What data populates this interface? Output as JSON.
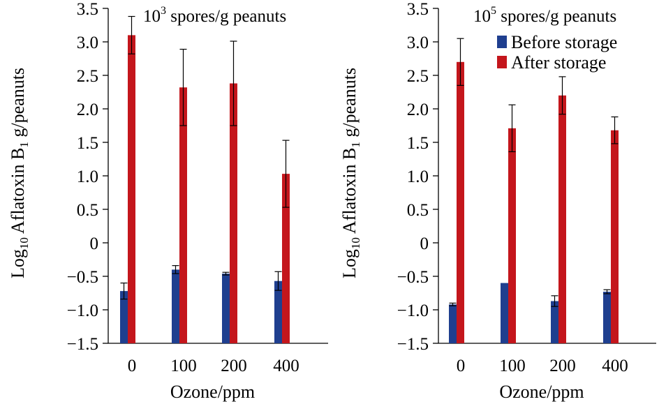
{
  "chart_data": [
    {
      "type": "bar",
      "title_base": "10",
      "title_sup": "3",
      "title_rest": " spores/g peanuts",
      "xlabel": "Ozone/ppm",
      "ylabel_base": "Log",
      "ylabel_sub1": "10",
      "ylabel_mid": " Aflatoxin B",
      "ylabel_sub2": "1",
      "ylabel_end": " g/peanuts",
      "ylim": [
        -1.5,
        3.5
      ],
      "yticks": [
        "-1.5",
        "-1.0",
        "-0.5",
        "0",
        "0.5",
        "1.0",
        "1.5",
        "2.0",
        "2.5",
        "3.0",
        "3.5"
      ],
      "categories": [
        "0",
        "100",
        "200",
        "400"
      ],
      "series": [
        {
          "name": "Before storage",
          "color": "#1f3f8f",
          "values": [
            -0.72,
            -0.4,
            -0.46,
            -0.57
          ],
          "errors": [
            0.12,
            0.06,
            0.02,
            0.14
          ]
        },
        {
          "name": "After storage",
          "color": "#c4161c",
          "values": [
            3.1,
            2.32,
            2.38,
            1.03
          ],
          "errors": [
            0.28,
            0.57,
            0.63,
            0.5
          ]
        }
      ],
      "legend": false
    },
    {
      "type": "bar",
      "title_base": "10",
      "title_sup": "5",
      "title_rest": " spores/g peanuts",
      "xlabel": "Ozone/ppm",
      "ylabel_base": "Log",
      "ylabel_sub1": "10",
      "ylabel_mid": " Aflatoxin B",
      "ylabel_sub2": "1",
      "ylabel_end": " g/peanuts",
      "ylim": [
        -1.5,
        3.5
      ],
      "yticks": [
        "-1.5",
        "-1.0",
        "-0.5",
        "0",
        "0.5",
        "1.0",
        "1.5",
        "2.0",
        "2.5",
        "3.0",
        "3.5"
      ],
      "categories": [
        "0",
        "100",
        "200",
        "400"
      ],
      "series": [
        {
          "name": "Before storage",
          "color": "#1f3f8f",
          "values": [
            -0.92,
            -0.6,
            -0.87,
            -0.73
          ],
          "errors": [
            0.02,
            0.0,
            0.08,
            0.03
          ]
        },
        {
          "name": "After storage",
          "color": "#c4161c",
          "values": [
            2.7,
            1.71,
            2.2,
            1.68
          ],
          "errors": [
            0.35,
            0.35,
            0.28,
            0.2
          ]
        }
      ],
      "legend": true,
      "legend_position": "top-right"
    }
  ]
}
